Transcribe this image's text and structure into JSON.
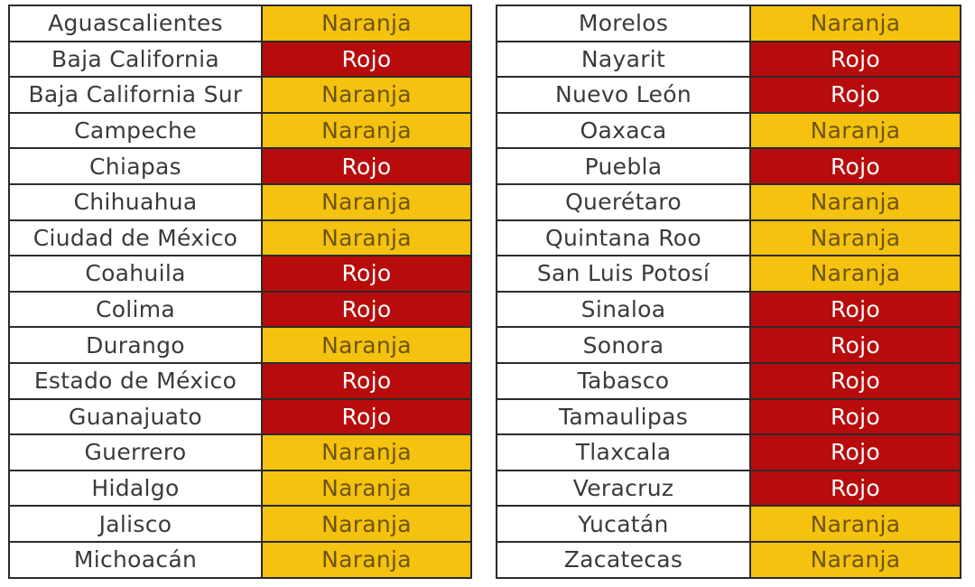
{
  "colors": {
    "Naranja": "#f4c20f",
    "Rojo": "#b80c0c"
  },
  "tables": [
    {
      "rows": [
        {
          "state": "Aguascalientes",
          "status": "Naranja"
        },
        {
          "state": "Baja California",
          "status": "Rojo"
        },
        {
          "state": "Baja California Sur",
          "status": "Naranja"
        },
        {
          "state": "Campeche",
          "status": "Naranja"
        },
        {
          "state": "Chiapas",
          "status": "Rojo"
        },
        {
          "state": "Chihuahua",
          "status": "Naranja"
        },
        {
          "state": "Ciudad de México",
          "status": "Naranja"
        },
        {
          "state": "Coahuila",
          "status": "Rojo"
        },
        {
          "state": "Colima",
          "status": "Rojo"
        },
        {
          "state": "Durango",
          "status": "Naranja"
        },
        {
          "state": "Estado de México",
          "status": "Rojo"
        },
        {
          "state": "Guanajuato",
          "status": "Rojo"
        },
        {
          "state": "Guerrero",
          "status": "Naranja"
        },
        {
          "state": "Hidalgo",
          "status": "Naranja"
        },
        {
          "state": "Jalisco",
          "status": "Naranja"
        },
        {
          "state": "Michoacán",
          "status": "Naranja"
        }
      ]
    },
    {
      "rows": [
        {
          "state": "Morelos",
          "status": "Naranja"
        },
        {
          "state": "Nayarit",
          "status": "Rojo"
        },
        {
          "state": "Nuevo León",
          "status": "Rojo"
        },
        {
          "state": "Oaxaca",
          "status": "Naranja"
        },
        {
          "state": "Puebla",
          "status": "Rojo"
        },
        {
          "state": "Querétaro",
          "status": "Naranja"
        },
        {
          "state": "Quintana Roo",
          "status": "Naranja"
        },
        {
          "state": "San Luis Potosí",
          "status": "Naranja"
        },
        {
          "state": "Sinaloa",
          "status": "Rojo"
        },
        {
          "state": "Sonora",
          "status": "Rojo"
        },
        {
          "state": "Tabasco",
          "status": "Rojo"
        },
        {
          "state": "Tamaulipas",
          "status": "Rojo"
        },
        {
          "state": "Tlaxcala",
          "status": "Rojo"
        },
        {
          "state": "Veracruz",
          "status": "Rojo"
        },
        {
          "state": "Yucatán",
          "status": "Naranja"
        },
        {
          "state": "Zacatecas",
          "status": "Naranja"
        }
      ]
    }
  ]
}
